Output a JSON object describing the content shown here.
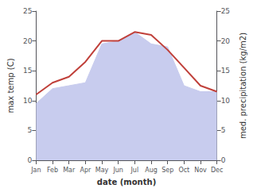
{
  "chart_data": {
    "type": "line",
    "categories": [
      "Jan",
      "Feb",
      "Mar",
      "Apr",
      "May",
      "Jun",
      "Jul",
      "Aug",
      "Sep",
      "Oct",
      "Nov",
      "Dec"
    ],
    "xlabel": "date (month)",
    "ylabel": "max temp (C)",
    "y2label": "med. precipitation (kg/m2)",
    "series": [
      {
        "type": "area",
        "axis": "y2",
        "color": "#c8ccee",
        "values": [
          9.5,
          12.0,
          12.5,
          13.0,
          19.5,
          20.0,
          21.5,
          19.5,
          19.0,
          12.5,
          11.5,
          11.5
        ]
      },
      {
        "type": "line",
        "color": "#c0403a",
        "values": [
          11.0,
          13.0,
          14.0,
          16.5,
          20.0,
          20.0,
          21.5,
          21.0,
          18.5,
          15.5,
          12.5,
          11.5
        ]
      }
    ],
    "ylim": [
      0,
      25
    ],
    "yticks": [
      0,
      5,
      10,
      15,
      20,
      25
    ],
    "y2lim": [
      0,
      25
    ],
    "y2ticks": [
      0,
      5,
      10,
      15,
      20,
      25
    ],
    "grid": false
  }
}
